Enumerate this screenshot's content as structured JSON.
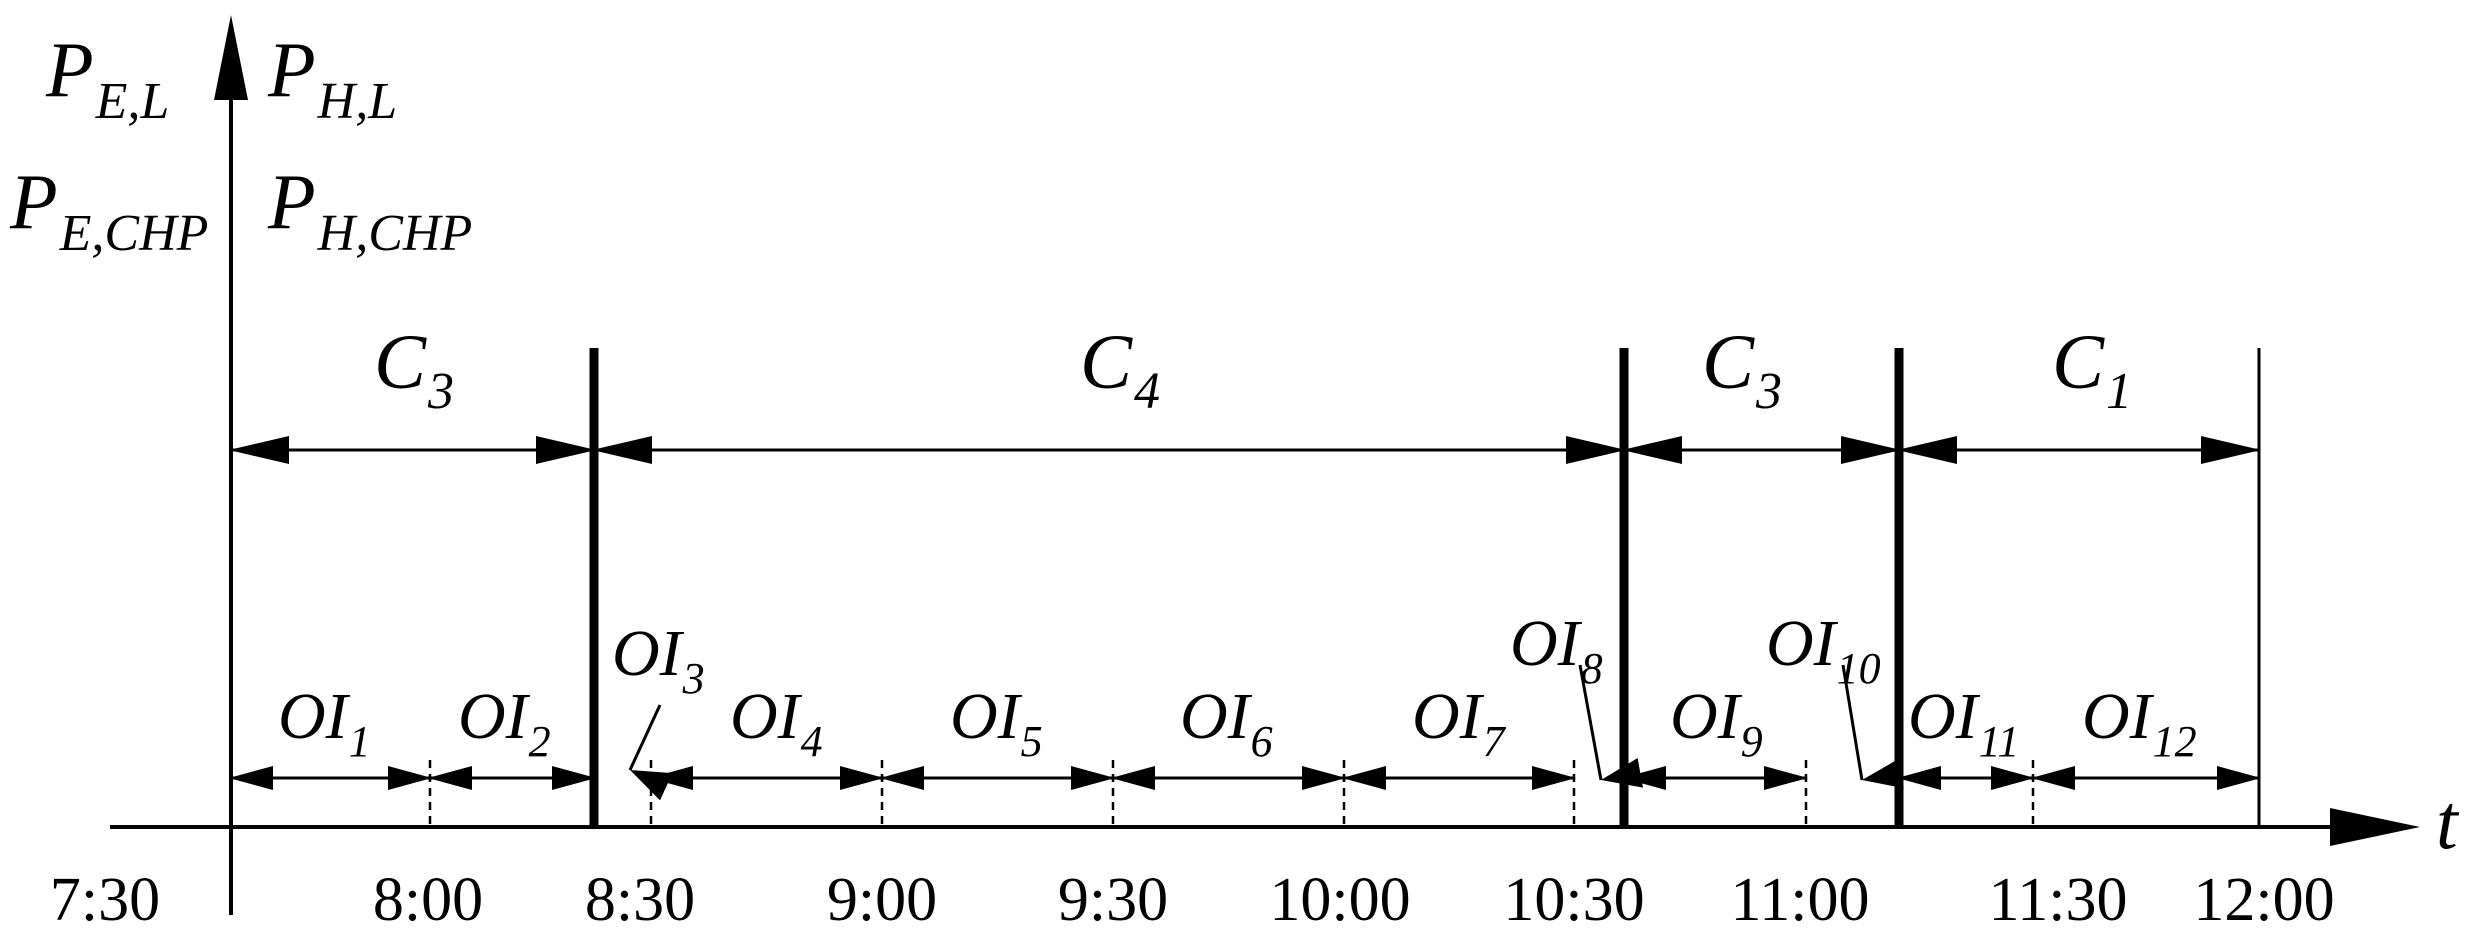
{
  "diagram": {
    "y_axis_labels": [
      {
        "main": "P",
        "sub": "E,L"
      },
      {
        "main": "P",
        "sub": "H,L"
      },
      {
        "main": "P",
        "sub": "E,CHP"
      },
      {
        "main": "P",
        "sub": "H,CHP"
      }
    ],
    "x_axis_label": "t",
    "time_ticks": [
      "7:30",
      "8:00",
      "8:30",
      "9:00",
      "9:30",
      "10:00",
      "10:30",
      "11:00",
      "11:30",
      "12:00"
    ],
    "cases": [
      {
        "main": "C",
        "sub": "3"
      },
      {
        "main": "C",
        "sub": "4"
      },
      {
        "main": "C",
        "sub": "3"
      },
      {
        "main": "C",
        "sub": "1"
      }
    ],
    "intervals": [
      {
        "main": "OI",
        "sub": "1"
      },
      {
        "main": "OI",
        "sub": "2"
      },
      {
        "main": "OI",
        "sub": "3"
      },
      {
        "main": "OI",
        "sub": "4"
      },
      {
        "main": "OI",
        "sub": "5"
      },
      {
        "main": "OI",
        "sub": "6"
      },
      {
        "main": "OI",
        "sub": "7"
      },
      {
        "main": "OI",
        "sub": "8"
      },
      {
        "main": "OI",
        "sub": "9"
      },
      {
        "main": "OI",
        "sub": "10"
      },
      {
        "main": "OI",
        "sub": "11"
      },
      {
        "main": "OI",
        "sub": "12"
      }
    ]
  }
}
